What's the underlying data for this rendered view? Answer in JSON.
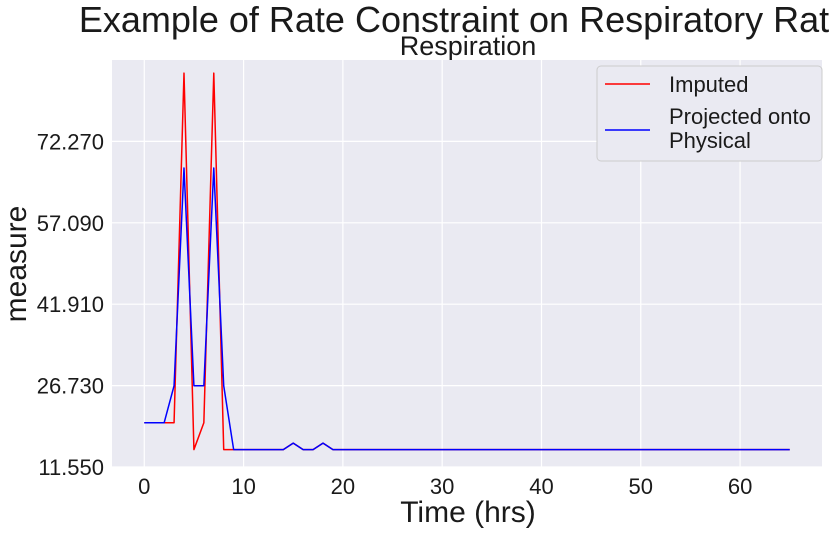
{
  "chart_data": {
    "type": "line",
    "title": "Example of Rate Constraint on Respiratory Rate",
    "subtitle": "Respiration",
    "xlabel": "Time (hrs)",
    "ylabel": "measure",
    "xlim": [
      -3.25,
      68.25
    ],
    "ylim": [
      11.55,
      87.45
    ],
    "xticks": [
      0,
      10,
      20,
      30,
      40,
      50,
      60
    ],
    "xtick_labels": [
      "0",
      "10",
      "20",
      "30",
      "40",
      "50",
      "60"
    ],
    "yticks": [
      11.55,
      26.73,
      41.91,
      57.09,
      72.27
    ],
    "ytick_labels": [
      "11.550",
      "26.730",
      "41.910",
      "57.090",
      "72.270"
    ],
    "grid": true,
    "legend_position": "top-right",
    "series": [
      {
        "name": "Imputed",
        "color": "#ff0000",
        "x": [
          0,
          1,
          2,
          3,
          4,
          5,
          6,
          7,
          8,
          9,
          10,
          11,
          12,
          13,
          14,
          15,
          16,
          17,
          18,
          19,
          20,
          25,
          30,
          35,
          40,
          45,
          50,
          55,
          60,
          65
        ],
        "y": [
          19.8,
          19.8,
          19.8,
          19.8,
          85.0,
          14.8,
          19.8,
          85.0,
          14.8,
          14.8,
          14.8,
          14.8,
          14.8,
          14.8,
          14.8,
          16.0,
          14.8,
          14.8,
          16.0,
          14.8,
          14.8,
          14.8,
          14.8,
          14.8,
          14.8,
          14.8,
          14.8,
          14.8,
          14.8,
          14.8
        ]
      },
      {
        "name": "Projected onto\nPhysical",
        "color": "#0000ff",
        "x": [
          0,
          1,
          2,
          3,
          4,
          5,
          6,
          7,
          8,
          9,
          10,
          11,
          12,
          13,
          14,
          15,
          16,
          17,
          18,
          19,
          20,
          25,
          30,
          35,
          40,
          45,
          50,
          55,
          60,
          65
        ],
        "y": [
          19.8,
          19.8,
          19.8,
          26.7,
          67.3,
          26.7,
          26.7,
          67.3,
          26.7,
          14.8,
          14.8,
          14.8,
          14.8,
          14.8,
          14.8,
          16.0,
          14.8,
          14.8,
          16.0,
          14.8,
          14.8,
          14.8,
          14.8,
          14.8,
          14.8,
          14.8,
          14.8,
          14.8,
          14.8,
          14.8
        ]
      }
    ]
  }
}
